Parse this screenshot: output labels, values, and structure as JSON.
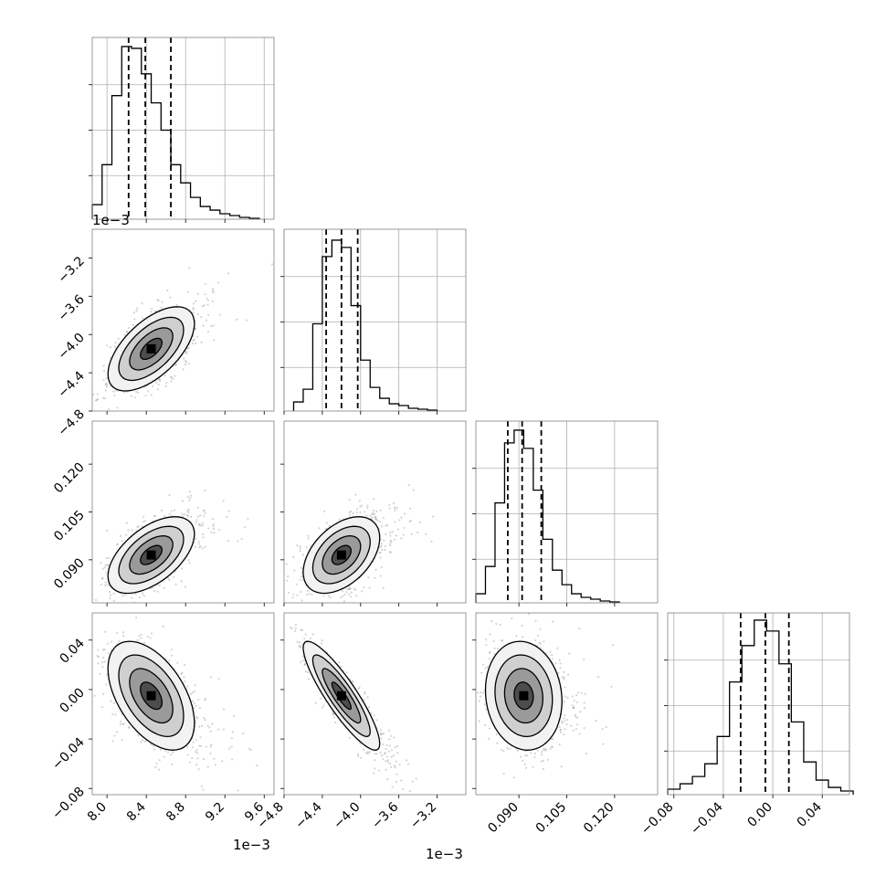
{
  "figure": {
    "type": "corner",
    "grid": true,
    "quantile_lines": "dashed"
  },
  "chart_data": [
    {
      "type": "histogram",
      "var": 0,
      "xlim": [
        0.00785,
        0.0097
      ],
      "x": [
        7.9,
        8.0,
        8.1,
        8.2,
        8.3,
        8.4,
        8.5,
        8.6,
        8.7,
        8.8,
        8.9,
        9.0,
        9.1,
        9.2,
        9.3,
        9.4,
        9.5
      ],
      "counts": [
        0.08,
        0.3,
        0.68,
        0.95,
        0.94,
        0.8,
        0.64,
        0.49,
        0.3,
        0.2,
        0.12,
        0.07,
        0.05,
        0.03,
        0.02,
        0.01,
        0.005
      ],
      "quantiles": [
        0.00822,
        0.00839,
        0.00865
      ]
    },
    {
      "type": "histogram",
      "var": 1,
      "xlim": [
        -0.0048,
        -0.0029
      ],
      "x": [
        -4.65,
        -4.55,
        -4.45,
        -4.35,
        -4.25,
        -4.15,
        -4.05,
        -3.95,
        -3.85,
        -3.75,
        -3.65,
        -3.55,
        -3.45,
        -3.35,
        -3.25
      ],
      "counts": [
        0.05,
        0.12,
        0.48,
        0.85,
        0.94,
        0.9,
        0.58,
        0.28,
        0.13,
        0.07,
        0.04,
        0.03,
        0.015,
        0.01,
        0.005
      ],
      "quantiles": [
        -0.00436,
        -0.0042,
        -0.00403
      ]
    },
    {
      "type": "histogram",
      "var": 2,
      "xlim": [
        0.0765,
        0.1335
      ],
      "x": [
        0.078,
        0.081,
        0.084,
        0.087,
        0.09,
        0.093,
        0.096,
        0.099,
        0.102,
        0.105,
        0.108,
        0.111,
        0.114,
        0.117,
        0.12
      ],
      "counts": [
        0.05,
        0.2,
        0.55,
        0.88,
        0.95,
        0.85,
        0.62,
        0.35,
        0.18,
        0.1,
        0.05,
        0.03,
        0.02,
        0.01,
        0.005
      ],
      "quantiles": [
        0.0865,
        0.091,
        0.097
      ]
    },
    {
      "type": "histogram",
      "var": 3,
      "xlim": [
        -0.085,
        0.062
      ],
      "x": [
        -0.08,
        -0.07,
        -0.06,
        -0.05,
        -0.04,
        -0.03,
        -0.02,
        -0.01,
        0.0,
        0.01,
        0.02,
        0.03,
        0.04,
        0.05,
        0.06
      ],
      "counts": [
        0.03,
        0.06,
        0.1,
        0.17,
        0.32,
        0.62,
        0.82,
        0.96,
        0.9,
        0.72,
        0.4,
        0.18,
        0.08,
        0.04,
        0.02
      ],
      "quantiles": [
        -0.026,
        -0.006,
        0.013
      ]
    },
    {
      "type": "scatter",
      "xvar": 0,
      "yvar": 1,
      "xlim": [
        0.00785,
        0.0097
      ],
      "ylim": [
        -0.0048,
        -0.0029
      ],
      "mean": [
        0.00845,
        -0.00415
      ],
      "sd": [
        0.00022,
        0.00022
      ],
      "corr": 0.6,
      "contours": [
        0.5,
        1.0,
        1.5,
        2.0
      ]
    },
    {
      "type": "scatter",
      "xvar": 0,
      "yvar": 2,
      "xlim": [
        0.00785,
        0.0097
      ],
      "ylim": [
        0.0765,
        0.1335
      ],
      "mean": [
        0.00845,
        0.0915
      ],
      "sd": [
        0.00022,
        0.006
      ],
      "corr": 0.55,
      "contours": [
        0.5,
        1.0,
        1.5,
        2.0
      ]
    },
    {
      "type": "scatter",
      "xvar": 1,
      "yvar": 2,
      "xlim": [
        -0.0048,
        -0.0029
      ],
      "ylim": [
        0.0765,
        0.1335
      ],
      "mean": [
        -0.0042,
        0.0915
      ],
      "sd": [
        0.0002,
        0.006
      ],
      "corr": 0.45,
      "contours": [
        0.5,
        1.0,
        1.5,
        2.0
      ]
    },
    {
      "type": "scatter",
      "xvar": 0,
      "yvar": 3,
      "xlim": [
        0.00785,
        0.0097
      ],
      "ylim": [
        -0.085,
        0.062
      ],
      "mean": [
        0.00845,
        -0.005
      ],
      "sd": [
        0.00022,
        0.022
      ],
      "corr": -0.5,
      "contours": [
        0.5,
        1.0,
        1.5,
        2.0
      ]
    },
    {
      "type": "scatter",
      "xvar": 1,
      "yvar": 3,
      "xlim": [
        -0.0048,
        -0.0029
      ],
      "ylim": [
        -0.085,
        0.062
      ],
      "mean": [
        -0.0042,
        -0.005
      ],
      "sd": [
        0.0002,
        0.022
      ],
      "corr": -0.88,
      "contours": [
        0.5,
        1.0,
        1.5,
        2.0
      ]
    },
    {
      "type": "scatter",
      "xvar": 2,
      "yvar": 3,
      "xlim": [
        0.0765,
        0.1335
      ],
      "ylim": [
        -0.085,
        0.062
      ],
      "mean": [
        0.0915,
        -0.005
      ],
      "sd": [
        0.006,
        0.022
      ],
      "corr": -0.1,
      "contours": [
        0.5,
        1.0,
        1.5,
        2.0
      ]
    }
  ],
  "axes": {
    "col_ticks": [
      [
        "8.0",
        "8.4",
        "8.8",
        "9.2",
        "9.6"
      ],
      [
        "−4.8",
        "−4.4",
        "−4.0",
        "−3.6",
        "−3.2"
      ],
      [
        "0.090",
        "0.105",
        "0.120"
      ],
      [
        "−0.08",
        "−0.04",
        "0.00",
        "0.04"
      ]
    ],
    "col_tick_values": [
      [
        0.008,
        0.0084,
        0.0088,
        0.0092,
        0.0096
      ],
      [
        -0.0048,
        -0.0044,
        -0.004,
        -0.0036,
        -0.0032
      ],
      [
        0.09,
        0.105,
        0.12
      ],
      [
        -0.08,
        -0.04,
        0.0,
        0.04
      ]
    ],
    "row_ticks": [
      [],
      [
        "−4.8",
        "−4.4",
        "−4.0",
        "−3.6",
        "−3.2"
      ],
      [
        "0.090",
        "0.105",
        "0.120"
      ],
      [
        "−0.08",
        "−0.04",
        "0.00",
        "0.04"
      ]
    ],
    "row_tick_values": [
      [],
      [
        -0.0048,
        -0.0044,
        -0.004,
        -0.0036,
        -0.0032
      ],
      [
        0.09,
        0.105,
        0.12
      ],
      [
        -0.08,
        -0.04,
        0.0,
        0.04
      ]
    ],
    "offset_texts": {
      "row1_y": "1e−3",
      "col0_x": "1e−3",
      "col1_x": "1e−3"
    }
  }
}
